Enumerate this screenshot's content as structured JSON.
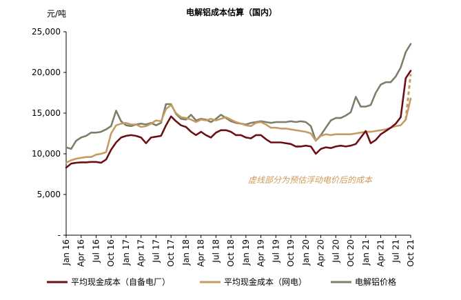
{
  "chart_data": {
    "type": "line",
    "title": "电解铝成本估算（国内）",
    "ylabel": "元/吨",
    "ylim": [
      0,
      25000
    ],
    "yticks": [
      {
        "value": 0,
        "label": "-"
      },
      {
        "value": 5000,
        "label": "5,000"
      },
      {
        "value": 10000,
        "label": "10,000"
      },
      {
        "value": 15000,
        "label": "15,000"
      },
      {
        "value": 20000,
        "label": "20,000"
      },
      {
        "value": 25000,
        "label": "25,000"
      }
    ],
    "xlim": [
      0,
      69
    ],
    "xticks": [
      {
        "value": 0,
        "label": "Jan 16"
      },
      {
        "value": 3,
        "label": "Apr 16"
      },
      {
        "value": 6,
        "label": "Jul 16"
      },
      {
        "value": 9,
        "label": "Oct 16"
      },
      {
        "value": 12,
        "label": "Jan 17"
      },
      {
        "value": 15,
        "label": "Apr 17"
      },
      {
        "value": 18,
        "label": "Jul 17"
      },
      {
        "value": 21,
        "label": "Oct 17"
      },
      {
        "value": 24,
        "label": "Jan 18"
      },
      {
        "value": 27,
        "label": "Apr 18"
      },
      {
        "value": 30,
        "label": "Jul 18"
      },
      {
        "value": 33,
        "label": "Oct 18"
      },
      {
        "value": 36,
        "label": "Jan 19"
      },
      {
        "value": 39,
        "label": "Apr 19"
      },
      {
        "value": 42,
        "label": "Jul 19"
      },
      {
        "value": 45,
        "label": "Oct 19"
      },
      {
        "value": 48,
        "label": "Jan 20"
      },
      {
        "value": 51,
        "label": "Apr 20"
      },
      {
        "value": 54,
        "label": "Jul 20"
      },
      {
        "value": 57,
        "label": "Oct 20"
      },
      {
        "value": 60,
        "label": "Jan 21"
      },
      {
        "value": 63,
        "label": "Apr 21"
      },
      {
        "value": 66,
        "label": "Jul 21"
      },
      {
        "value": 69,
        "label": "Oct 21"
      }
    ],
    "annotation": "虚线部分为预估浮动电价后的成本",
    "series": [
      {
        "name": "平均现金成本（自备电厂）",
        "color": "#6b0f14",
        "points": [
          [
            0,
            8300
          ],
          [
            1,
            8800
          ],
          [
            2,
            8900
          ],
          [
            3,
            8950
          ],
          [
            4,
            8950
          ],
          [
            5,
            9000
          ],
          [
            6,
            9000
          ],
          [
            7,
            8900
          ],
          [
            8,
            9300
          ],
          [
            9,
            10500
          ],
          [
            10,
            11400
          ],
          [
            11,
            12000
          ],
          [
            12,
            12200
          ],
          [
            13,
            12300
          ],
          [
            14,
            12200
          ],
          [
            15,
            12000
          ],
          [
            16,
            11300
          ],
          [
            17,
            12000
          ],
          [
            18,
            12100
          ],
          [
            19,
            12200
          ],
          [
            20,
            13500
          ],
          [
            21,
            14600
          ],
          [
            22,
            14000
          ],
          [
            23,
            13500
          ],
          [
            24,
            13300
          ],
          [
            25,
            12700
          ],
          [
            26,
            12300
          ],
          [
            27,
            12700
          ],
          [
            28,
            12300
          ],
          [
            29,
            12000
          ],
          [
            30,
            12600
          ],
          [
            31,
            12900
          ],
          [
            32,
            12900
          ],
          [
            33,
            12700
          ],
          [
            34,
            12300
          ],
          [
            35,
            12300
          ],
          [
            36,
            12000
          ],
          [
            37,
            11900
          ],
          [
            38,
            12300
          ],
          [
            39,
            12300
          ],
          [
            40,
            11800
          ],
          [
            41,
            11400
          ],
          [
            42,
            11400
          ],
          [
            43,
            11400
          ],
          [
            44,
            11300
          ],
          [
            45,
            11200
          ],
          [
            46,
            10900
          ],
          [
            47,
            10900
          ],
          [
            48,
            11000
          ],
          [
            49,
            10900
          ],
          [
            50,
            10000
          ],
          [
            51,
            10600
          ],
          [
            52,
            10800
          ],
          [
            53,
            10700
          ],
          [
            54,
            10900
          ],
          [
            55,
            11000
          ],
          [
            56,
            10900
          ],
          [
            57,
            11000
          ],
          [
            58,
            11200
          ],
          [
            59,
            12000
          ],
          [
            60,
            12800
          ],
          [
            61,
            11300
          ],
          [
            62,
            11700
          ],
          [
            63,
            12400
          ],
          [
            64,
            12800
          ],
          [
            65,
            13200
          ],
          [
            66,
            13700
          ],
          [
            67,
            14500
          ],
          [
            68,
            19300
          ],
          [
            69,
            20200
          ]
        ]
      },
      {
        "name": "平均现金成本（网电）",
        "color": "#c79a64",
        "points": [
          [
            0,
            8900
          ],
          [
            1,
            9200
          ],
          [
            2,
            9400
          ],
          [
            3,
            9500
          ],
          [
            4,
            9600
          ],
          [
            5,
            9600
          ],
          [
            6,
            9900
          ],
          [
            7,
            10000
          ],
          [
            8,
            10200
          ],
          [
            9,
            12500
          ],
          [
            10,
            13500
          ],
          [
            11,
            13700
          ],
          [
            12,
            13800
          ],
          [
            13,
            13600
          ],
          [
            14,
            13600
          ],
          [
            15,
            13300
          ],
          [
            16,
            13400
          ],
          [
            17,
            13700
          ],
          [
            18,
            14100
          ],
          [
            19,
            14000
          ],
          [
            20,
            15500
          ],
          [
            21,
            16000
          ],
          [
            22,
            15000
          ],
          [
            23,
            14500
          ],
          [
            24,
            14400
          ],
          [
            25,
            14200
          ],
          [
            26,
            13900
          ],
          [
            27,
            14200
          ],
          [
            28,
            14100
          ],
          [
            29,
            14300
          ],
          [
            30,
            14100
          ],
          [
            31,
            14300
          ],
          [
            32,
            14500
          ],
          [
            33,
            14200
          ],
          [
            34,
            13900
          ],
          [
            35,
            13700
          ],
          [
            36,
            13500
          ],
          [
            37,
            13400
          ],
          [
            38,
            13800
          ],
          [
            39,
            13900
          ],
          [
            40,
            13600
          ],
          [
            41,
            13200
          ],
          [
            42,
            13200
          ],
          [
            43,
            13100
          ],
          [
            44,
            13100
          ],
          [
            45,
            13000
          ],
          [
            46,
            12900
          ],
          [
            47,
            12800
          ],
          [
            48,
            12700
          ],
          [
            49,
            12500
          ],
          [
            50,
            11600
          ],
          [
            51,
            12200
          ],
          [
            52,
            12400
          ],
          [
            53,
            12300
          ],
          [
            54,
            12400
          ],
          [
            55,
            12400
          ],
          [
            56,
            12400
          ],
          [
            57,
            12400
          ],
          [
            58,
            12500
          ],
          [
            59,
            12600
          ],
          [
            60,
            12700
          ],
          [
            61,
            12700
          ],
          [
            62,
            12800
          ],
          [
            63,
            12900
          ],
          [
            64,
            13000
          ],
          [
            65,
            13200
          ],
          [
            66,
            13400
          ],
          [
            67,
            13500
          ],
          [
            68,
            14200
          ],
          [
            69,
            16800
          ]
        ],
        "dashed_points": [
          [
            68,
            14200
          ],
          [
            69,
            19800
          ]
        ]
      },
      {
        "name": "电解铝价格",
        "color": "#7a8068",
        "points": [
          [
            0,
            10800
          ],
          [
            1,
            10600
          ],
          [
            2,
            11600
          ],
          [
            3,
            12000
          ],
          [
            4,
            12200
          ],
          [
            5,
            12600
          ],
          [
            6,
            12600
          ],
          [
            7,
            12700
          ],
          [
            8,
            13000
          ],
          [
            9,
            13400
          ],
          [
            10,
            15300
          ],
          [
            11,
            14000
          ],
          [
            12,
            13500
          ],
          [
            13,
            13400
          ],
          [
            14,
            13600
          ],
          [
            15,
            13700
          ],
          [
            16,
            13600
          ],
          [
            17,
            13800
          ],
          [
            18,
            13500
          ],
          [
            19,
            13800
          ],
          [
            20,
            16100
          ],
          [
            21,
            16100
          ],
          [
            22,
            14900
          ],
          [
            23,
            14300
          ],
          [
            24,
            14200
          ],
          [
            25,
            14800
          ],
          [
            26,
            14100
          ],
          [
            27,
            14300
          ],
          [
            28,
            14200
          ],
          [
            29,
            13900
          ],
          [
            30,
            14300
          ],
          [
            31,
            14800
          ],
          [
            32,
            14400
          ],
          [
            33,
            14000
          ],
          [
            34,
            13800
          ],
          [
            35,
            13700
          ],
          [
            36,
            13600
          ],
          [
            37,
            13800
          ],
          [
            38,
            13900
          ],
          [
            39,
            14000
          ],
          [
            40,
            13900
          ],
          [
            41,
            13800
          ],
          [
            42,
            13900
          ],
          [
            43,
            13900
          ],
          [
            44,
            13900
          ],
          [
            45,
            14000
          ],
          [
            46,
            13900
          ],
          [
            47,
            14000
          ],
          [
            48,
            13900
          ],
          [
            49,
            13400
          ],
          [
            50,
            11600
          ],
          [
            51,
            12300
          ],
          [
            52,
            13200
          ],
          [
            53,
            14100
          ],
          [
            54,
            14400
          ],
          [
            55,
            14400
          ],
          [
            56,
            14700
          ],
          [
            57,
            15100
          ],
          [
            58,
            17000
          ],
          [
            59,
            15800
          ],
          [
            60,
            15800
          ],
          [
            61,
            16000
          ],
          [
            62,
            17500
          ],
          [
            63,
            18500
          ],
          [
            64,
            18800
          ],
          [
            65,
            18800
          ],
          [
            66,
            19500
          ],
          [
            67,
            20600
          ],
          [
            68,
            22500
          ],
          [
            69,
            23500
          ]
        ]
      }
    ],
    "legend": [
      {
        "name": "平均现金成本（自备电厂）",
        "color": "#6b0f14"
      },
      {
        "name": "平均现金成本（网电）",
        "color": "#c79a64"
      },
      {
        "name": "电解铝价格",
        "color": "#7a8068"
      }
    ]
  }
}
